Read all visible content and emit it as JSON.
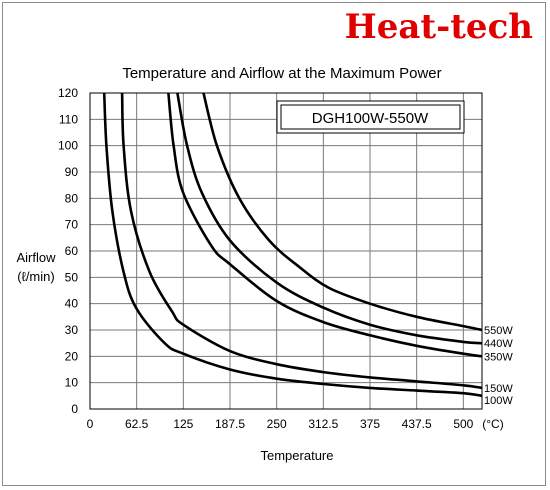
{
  "brand": {
    "name": "Heat-tech",
    "color": "#e00000"
  },
  "chart_data": {
    "type": "line",
    "title": "Temperature and Airflow at the Maximum Power",
    "model_label": "DGH100W-550W",
    "xlabel": "Temperature",
    "xunit": "(°C)",
    "ylabel": "Airflow",
    "yunit": "(ℓ/min)",
    "xlim": [
      0,
      525
    ],
    "ylim": [
      0,
      120
    ],
    "xticks": [
      "0",
      "62.5",
      "125",
      "187.5",
      "250",
      "312.5",
      "375",
      "437.5",
      "500"
    ],
    "yticks": [
      "0",
      "10",
      "20",
      "30",
      "40",
      "50",
      "60",
      "70",
      "80",
      "90",
      "100",
      "110",
      "120"
    ],
    "grid": true,
    "line_color": "#000000",
    "series": [
      {
        "name": "550W",
        "values": [
          [
            152,
            120
          ],
          [
            170,
            100
          ],
          [
            200,
            80
          ],
          [
            240,
            64
          ],
          [
            280,
            54
          ],
          [
            320,
            46
          ],
          [
            375,
            40
          ],
          [
            437.5,
            35
          ],
          [
            500,
            31.5
          ],
          [
            525,
            30
          ]
        ]
      },
      {
        "name": "440W",
        "values": [
          [
            117,
            120
          ],
          [
            130,
            100
          ],
          [
            150,
            82
          ],
          [
            187.5,
            64
          ],
          [
            250,
            48
          ],
          [
            312.5,
            38.5
          ],
          [
            375,
            32
          ],
          [
            437.5,
            28
          ],
          [
            500,
            25.5
          ],
          [
            525,
            25
          ]
        ]
      },
      {
        "name": "350W",
        "values": [
          [
            105,
            120
          ],
          [
            112,
            100
          ],
          [
            125,
            82
          ],
          [
            162.5,
            62
          ],
          [
            187.5,
            55
          ],
          [
            250,
            41
          ],
          [
            312.5,
            33
          ],
          [
            375,
            28
          ],
          [
            437.5,
            24
          ],
          [
            500,
            21
          ],
          [
            525,
            20
          ]
        ]
      },
      {
        "name": "150W",
        "values": [
          [
            43,
            120
          ],
          [
            45,
            100
          ],
          [
            55,
            75
          ],
          [
            80,
            52
          ],
          [
            110,
            37
          ],
          [
            125,
            32
          ],
          [
            187.5,
            22
          ],
          [
            250,
            17
          ],
          [
            312.5,
            14
          ],
          [
            375,
            12
          ],
          [
            437.5,
            10.5
          ],
          [
            500,
            9
          ],
          [
            525,
            8
          ]
        ]
      },
      {
        "name": "100W",
        "values": [
          [
            19,
            120
          ],
          [
            22,
            100
          ],
          [
            30,
            75
          ],
          [
            45,
            52
          ],
          [
            62.5,
            38
          ],
          [
            100,
            25
          ],
          [
            125,
            21
          ],
          [
            187.5,
            15
          ],
          [
            250,
            11.5
          ],
          [
            312.5,
            9.5
          ],
          [
            375,
            8
          ],
          [
            437.5,
            7
          ],
          [
            500,
            6
          ],
          [
            525,
            5
          ]
        ]
      }
    ]
  }
}
